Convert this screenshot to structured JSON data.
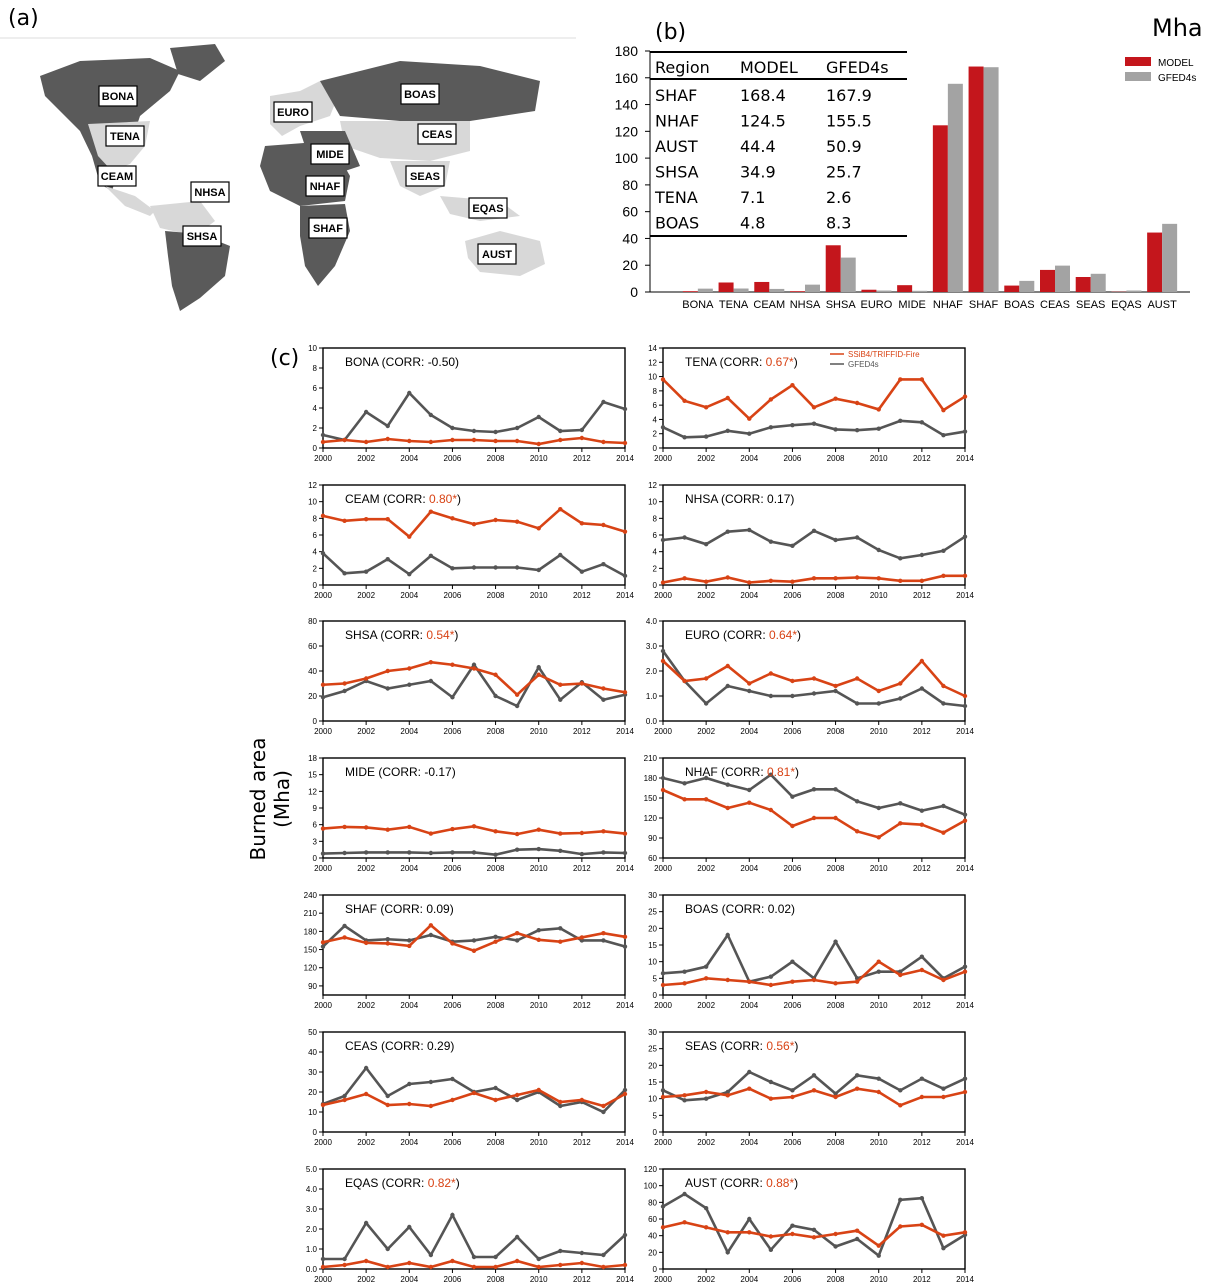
{
  "panel_labels": {
    "a": "(a)",
    "b": "(b)",
    "c": "(c)"
  },
  "unit": "Mha",
  "map": {
    "regions": [
      "BONA",
      "TENA",
      "CEAM",
      "NHSA",
      "SHSA",
      "EURO",
      "MIDE",
      "NHAF",
      "SHAF",
      "BOAS",
      "CEAS",
      "SEAS",
      "EQAS",
      "AUST"
    ]
  },
  "colors": {
    "model_bar": "#c4161c",
    "obs_bar": "#a3a3a3",
    "model_line": "#d84315",
    "obs_line": "#555555",
    "land_dark": "#5a5a5a",
    "land_light": "#d8d8d8"
  },
  "table": {
    "headers": [
      "Region",
      "MODEL",
      "GFED4s"
    ],
    "rows": [
      [
        "SHAF",
        "168.4",
        "167.9"
      ],
      [
        "NHAF",
        "124.5",
        "155.5"
      ],
      [
        "AUST",
        "44.4",
        "50.9"
      ],
      [
        "SHSA",
        "34.9",
        "25.7"
      ],
      [
        "TENA",
        "7.1",
        "2.6"
      ],
      [
        "BOAS",
        "4.8",
        "8.3"
      ]
    ]
  },
  "chart_data": [
    {
      "type": "bar",
      "categories": [
        "BONA",
        "TENA",
        "CEAM",
        "NHSA",
        "SHSA",
        "EURO",
        "MIDE",
        "NHAF",
        "SHAF",
        "BOAS",
        "CEAS",
        "SEAS",
        "EQAS",
        "AUST"
      ],
      "series": [
        {
          "name": "MODEL",
          "values": [
            0.6,
            7.1,
            7.5,
            0.6,
            34.9,
            1.7,
            5.1,
            124.5,
            168.4,
            4.8,
            16.5,
            11.2,
            0.2,
            44.4
          ]
        },
        {
          "name": "GFED4s",
          "values": [
            2.5,
            2.6,
            2.3,
            5.5,
            25.7,
            1.1,
            0.9,
            155.5,
            167.9,
            8.3,
            19.7,
            13.6,
            1.1,
            50.9
          ]
        }
      ],
      "ylim": [
        0,
        180
      ],
      "yticks": [
        0,
        20,
        40,
        60,
        80,
        100,
        120,
        140,
        160,
        180
      ],
      "legend": "top-right"
    },
    {
      "type": "line",
      "ylabel": "Burned area  (Mha)",
      "legend_entries": [
        "SSiB4/TRIFFID-Fire",
        "GFED4s"
      ],
      "x": [
        2000,
        2001,
        2002,
        2003,
        2004,
        2005,
        2006,
        2007,
        2008,
        2009,
        2010,
        2011,
        2012,
        2013,
        2014
      ],
      "xticks": [
        "2000",
        "2002",
        "2004",
        "2006",
        "2008",
        "2010",
        "2012",
        "2014"
      ],
      "panels": [
        {
          "region": "BONA",
          "corr_prefix": "BONA (CORR:",
          "corr": "-0.50",
          "sig": false,
          "yticks": [
            "0",
            "2",
            "4",
            "6",
            "8",
            "10"
          ],
          "ylim": [
            0,
            10
          ],
          "model": [
            0.6,
            0.8,
            0.6,
            0.9,
            0.7,
            0.6,
            0.8,
            0.8,
            0.7,
            0.7,
            0.4,
            0.8,
            1.0,
            0.6,
            0.5
          ],
          "obs": [
            1.3,
            0.8,
            3.6,
            2.2,
            5.5,
            3.3,
            2.0,
            1.7,
            1.6,
            2.0,
            3.1,
            1.7,
            1.8,
            4.6,
            3.9
          ]
        },
        {
          "region": "TENA",
          "corr_prefix": "TENA (CORR:",
          "corr": "0.67*",
          "sig": true,
          "yticks": [
            "0",
            "2",
            "4",
            "6",
            "8",
            "10",
            "12",
            "14"
          ],
          "ylim": [
            0,
            14
          ],
          "model": [
            9.6,
            6.6,
            5.7,
            7.0,
            4.1,
            6.8,
            8.8,
            5.7,
            6.9,
            6.3,
            5.4,
            9.6,
            9.6,
            5.3,
            7.2
          ],
          "obs": [
            2.9,
            1.5,
            1.6,
            2.4,
            2.0,
            2.9,
            3.2,
            3.4,
            2.6,
            2.5,
            2.7,
            3.8,
            3.6,
            1.8,
            2.3
          ]
        },
        {
          "region": "CEAM",
          "corr_prefix": "CEAM (CORR:",
          "corr": "0.80*",
          "sig": true,
          "yticks": [
            "0",
            "2",
            "4",
            "6",
            "8",
            "10",
            "12"
          ],
          "ylim": [
            0,
            12
          ],
          "model": [
            8.3,
            7.7,
            7.9,
            7.9,
            5.8,
            8.8,
            8.0,
            7.3,
            7.8,
            7.6,
            6.8,
            9.1,
            7.4,
            7.2,
            6.4
          ],
          "obs": [
            3.8,
            1.4,
            1.6,
            3.1,
            1.3,
            3.5,
            2.0,
            2.1,
            2.1,
            2.1,
            1.8,
            3.6,
            1.6,
            2.5,
            1.1
          ]
        },
        {
          "region": "NHSA",
          "corr_prefix": "NHSA (CORR:",
          "corr": "0.17",
          "sig": false,
          "yticks": [
            "0",
            "2",
            "4",
            "6",
            "8",
            "10",
            "12"
          ],
          "ylim": [
            0,
            12
          ],
          "model": [
            0.3,
            0.8,
            0.4,
            0.9,
            0.3,
            0.5,
            0.4,
            0.8,
            0.8,
            0.9,
            0.8,
            0.5,
            0.5,
            1.1,
            1.1
          ],
          "obs": [
            5.4,
            5.7,
            4.9,
            6.4,
            6.6,
            5.2,
            4.7,
            6.5,
            5.4,
            5.7,
            4.2,
            3.2,
            3.6,
            4.1,
            5.8
          ]
        },
        {
          "region": "SHSA",
          "corr_prefix": "SHSA (CORR:",
          "corr": "0.54*",
          "sig": true,
          "yticks": [
            "0",
            "20",
            "40",
            "60",
            "80"
          ],
          "ylim": [
            0,
            80
          ],
          "model": [
            29,
            30,
            34,
            40,
            42,
            47,
            45,
            42,
            37,
            21,
            37,
            29,
            30,
            26,
            23
          ],
          "obs": [
            19,
            24,
            32,
            26,
            29,
            32,
            19,
            45,
            20,
            12,
            43,
            17,
            31,
            17,
            21
          ]
        },
        {
          "region": "EURO",
          "corr_prefix": "EURO (CORR:",
          "corr": "0.64*",
          "sig": true,
          "yticks": [
            "0.0",
            "1.0",
            "2.0",
            "3.0",
            "4.0"
          ],
          "ylim": [
            0,
            4
          ],
          "model": [
            2.4,
            1.6,
            1.7,
            2.2,
            1.5,
            1.9,
            1.6,
            1.7,
            1.4,
            1.7,
            1.2,
            1.5,
            2.4,
            1.4,
            1.0
          ],
          "obs": [
            2.8,
            1.6,
            0.7,
            1.4,
            1.2,
            1.0,
            1.0,
            1.1,
            1.2,
            0.7,
            0.7,
            0.9,
            1.3,
            0.7,
            0.6
          ]
        },
        {
          "region": "MIDE",
          "corr_prefix": "MIDE (CORR:",
          "corr": "-0.17",
          "sig": false,
          "yticks": [
            "0",
            "3",
            "6",
            "9",
            "12",
            "15",
            "18"
          ],
          "ylim": [
            0,
            18
          ],
          "model": [
            5.3,
            5.6,
            5.5,
            5.1,
            5.6,
            4.4,
            5.2,
            5.7,
            4.8,
            4.3,
            5.1,
            4.4,
            4.5,
            4.8,
            4.4
          ],
          "obs": [
            0.8,
            0.9,
            1.0,
            1.0,
            1.0,
            0.9,
            1.0,
            1.0,
            0.6,
            1.5,
            1.6,
            1.3,
            0.7,
            1.0,
            0.9
          ]
        },
        {
          "region": "NHAF",
          "corr_prefix": "NHAF (CORR:",
          "corr": "0.81*",
          "sig": true,
          "yticks": [
            "60",
            "90",
            "120",
            "150",
            "180",
            "210"
          ],
          "ylim": [
            60,
            210
          ],
          "model": [
            162,
            148,
            148,
            135,
            143,
            132,
            108,
            120,
            120,
            100,
            91,
            112,
            110,
            98,
            116
          ],
          "obs": [
            180,
            172,
            180,
            170,
            162,
            185,
            152,
            163,
            163,
            145,
            135,
            142,
            131,
            138,
            125
          ]
        },
        {
          "region": "SHAF",
          "corr_prefix": "SHAF (CORR:",
          "corr": "0.09",
          "sig": false,
          "yticks": [
            "90",
            "120",
            "150",
            "180",
            "210",
            "240"
          ],
          "ylim": [
            75,
            240
          ],
          "model": [
            162,
            170,
            161,
            160,
            156,
            190,
            160,
            148,
            163,
            177,
            166,
            163,
            170,
            177,
            171
          ],
          "obs": [
            155,
            189,
            165,
            167,
            165,
            174,
            163,
            165,
            171,
            165,
            182,
            185,
            165,
            165,
            155
          ]
        },
        {
          "region": "BOAS",
          "corr_prefix": "BOAS (CORR:",
          "corr": "0.02",
          "sig": false,
          "yticks": [
            "0",
            "5",
            "10",
            "15",
            "20",
            "25",
            "30"
          ],
          "ylim": [
            0,
            30
          ],
          "model": [
            3,
            3.5,
            5,
            4.5,
            4,
            3,
            4,
            4.5,
            3.5,
            4,
            10,
            6,
            7.5,
            4.5,
            7
          ],
          "obs": [
            6.5,
            7,
            8.5,
            18,
            4,
            5.5,
            10,
            5,
            16,
            5,
            7,
            7,
            11.5,
            5,
            8.5
          ]
        },
        {
          "region": "CEAS",
          "corr_prefix": "CEAS (CORR:",
          "corr": "0.29",
          "sig": false,
          "yticks": [
            "0",
            "10",
            "20",
            "30",
            "40",
            "50"
          ],
          "ylim": [
            0,
            50
          ],
          "model": [
            13.5,
            16,
            19,
            13.5,
            14,
            13,
            16,
            19.5,
            16,
            18.5,
            21,
            15,
            16,
            13,
            19
          ],
          "obs": [
            14,
            18,
            32,
            18,
            24,
            25,
            26.5,
            20,
            22,
            16,
            20,
            13,
            15,
            10,
            21
          ]
        },
        {
          "region": "SEAS",
          "corr_prefix": "SEAS (CORR:",
          "corr": "0.56*",
          "sig": true,
          "yticks": [
            "0",
            "5",
            "10",
            "15",
            "20",
            "25",
            "30"
          ],
          "ylim": [
            0,
            30
          ],
          "model": [
            10.5,
            11,
            12,
            11,
            13,
            10,
            10.5,
            12.5,
            10.5,
            13,
            12,
            8,
            10.5,
            10.5,
            12
          ],
          "obs": [
            12.5,
            9.5,
            10,
            12,
            18,
            15,
            12.5,
            17,
            11.5,
            17,
            16,
            12.5,
            16,
            13,
            16
          ]
        },
        {
          "region": "EQAS",
          "corr_prefix": "EQAS (CORR:",
          "corr": "0.82*",
          "sig": true,
          "yticks": [
            "0.0",
            "1.0",
            "2.0",
            "3.0",
            "4.0",
            "5.0"
          ],
          "ylim": [
            0,
            5
          ],
          "model": [
            0.1,
            0.2,
            0.4,
            0.1,
            0.3,
            0.1,
            0.4,
            0.1,
            0.1,
            0.4,
            0.1,
            0.2,
            0.3,
            0.1,
            0.2
          ],
          "obs": [
            0.5,
            0.5,
            2.3,
            1.0,
            2.1,
            0.7,
            2.7,
            0.6,
            0.6,
            1.6,
            0.5,
            0.9,
            0.8,
            0.7,
            1.7
          ]
        },
        {
          "region": "AUST",
          "corr_prefix": "AUST (CORR:",
          "corr": "0.88*",
          "sig": true,
          "yticks": [
            "0",
            "20",
            "40",
            "60",
            "80",
            "100",
            "120"
          ],
          "ylim": [
            0,
            120
          ],
          "model": [
            50,
            56,
            50,
            44,
            44,
            39,
            42,
            38,
            42,
            46,
            28,
            51,
            53,
            40,
            44
          ],
          "obs": [
            75,
            90,
            73,
            20,
            60,
            23,
            52,
            47,
            27,
            36,
            16,
            83,
            85,
            25,
            41
          ]
        }
      ]
    }
  ]
}
